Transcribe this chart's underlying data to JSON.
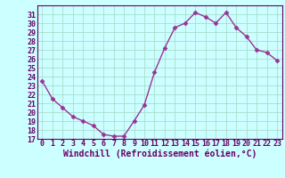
{
  "x": [
    0,
    1,
    2,
    3,
    4,
    5,
    6,
    7,
    8,
    9,
    10,
    11,
    12,
    13,
    14,
    15,
    16,
    17,
    18,
    19,
    20,
    21,
    22,
    23
  ],
  "y": [
    23.5,
    21.5,
    20.5,
    19.5,
    19.0,
    18.5,
    17.5,
    17.3,
    17.3,
    19.0,
    20.8,
    24.5,
    27.2,
    29.5,
    30.0,
    31.2,
    30.7,
    30.0,
    31.2,
    29.5,
    28.5,
    27.0,
    26.7,
    25.8
  ],
  "line_color": "#993399",
  "marker": "D",
  "marker_size": 2.5,
  "bg_color": "#ccffff",
  "grid_color": "#aaddcc",
  "xlabel": "Windchill (Refroidissement éolien,°C)",
  "ylim": [
    17,
    32
  ],
  "xlim_min": -0.5,
  "xlim_max": 23.5,
  "yticks": [
    17,
    18,
    19,
    20,
    21,
    22,
    23,
    24,
    25,
    26,
    27,
    28,
    29,
    30,
    31
  ],
  "xticks": [
    0,
    1,
    2,
    3,
    4,
    5,
    6,
    7,
    8,
    9,
    10,
    11,
    12,
    13,
    14,
    15,
    16,
    17,
    18,
    19,
    20,
    21,
    22,
    23
  ],
  "xlabel_fontsize": 7.0,
  "tick_fontsize": 6.0,
  "tick_color": "#660066",
  "axis_color": "#660066",
  "line_width": 1.0
}
